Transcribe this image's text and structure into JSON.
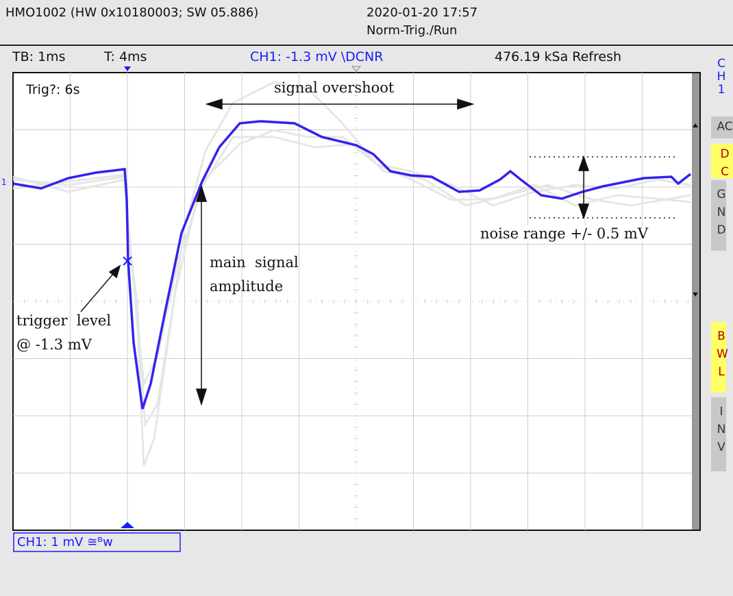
{
  "header": {
    "device": "HMO1002 (HW 0x10180003; SW 05.886)",
    "datetime": "2020-01-20 17:57",
    "mode": "Norm-Trig./Run"
  },
  "status": {
    "timebase": "TB: 1ms",
    "trigger_time": "T: 4ms",
    "channel": "CH1: -1.3 mV \\DCNR",
    "sample_rate": "476.19 kSa Refresh"
  },
  "screen": {
    "trigger_status": "Trig?: 6s",
    "ground_marker": "1"
  },
  "side_panel": {
    "channel_label": "CH1",
    "buttons": [
      {
        "label": "AC",
        "active": false
      },
      {
        "label": "DC",
        "active": true
      },
      {
        "label": "GND",
        "active": false
      },
      {
        "label": "BWL",
        "active": true
      },
      {
        "label": "INV",
        "active": false
      }
    ]
  },
  "footer": {
    "channel_scale": "CH1: 1 mV ≅ᴮw"
  },
  "annotations": {
    "overshoot": "signal overshoot",
    "amplitude_1": "main  signal",
    "amplitude_2": "amplitude",
    "trigger_1": "trigger  level",
    "trigger_2": "@ -1.3 mV",
    "noise": "noise range +/- 0.5 mV"
  }
}
